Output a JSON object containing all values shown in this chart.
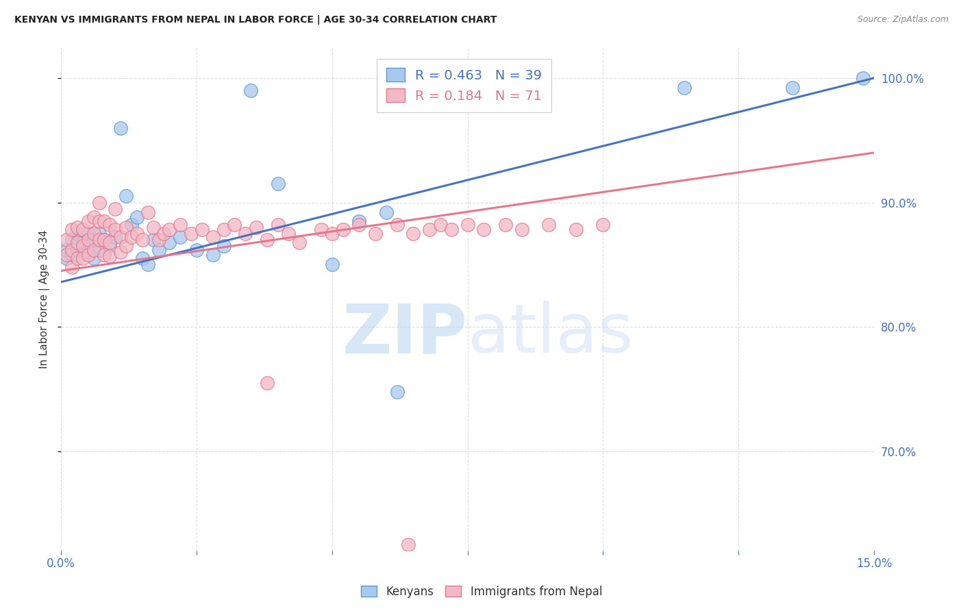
{
  "title": "KENYAN VS IMMIGRANTS FROM NEPAL IN LABOR FORCE | AGE 30-34 CORRELATION CHART",
  "source": "Source: ZipAtlas.com",
  "ylabel": "In Labor Force | Age 30-34",
  "xlim": [
    0.0,
    0.15
  ],
  "ylim": [
    0.62,
    1.025
  ],
  "xtick_positions": [
    0.0,
    0.025,
    0.05,
    0.075,
    0.1,
    0.125,
    0.15
  ],
  "xtick_labels": [
    "0.0%",
    "",
    "",
    "",
    "",
    "",
    "15.0%"
  ],
  "ytick_positions": [
    0.7,
    0.8,
    0.9,
    1.0
  ],
  "ytick_labels": [
    "70.0%",
    "80.0%",
    "90.0%",
    "100.0%"
  ],
  "blue_R": 0.463,
  "blue_N": 39,
  "pink_R": 0.184,
  "pink_N": 71,
  "blue_fill": "#A8C8ED",
  "pink_fill": "#F2B8C6",
  "blue_edge": "#5B9BD5",
  "pink_edge": "#E8768A",
  "blue_line": "#4472C4",
  "pink_line": "#E8768A",
  "legend_blue": "Kenyans",
  "legend_pink": "Immigrants from Nepal",
  "watermark_zip": "ZIP",
  "watermark_atlas": "atlas",
  "background": "#FFFFFF",
  "grid_color": "#DDDDDD",
  "blue_x": [
    0.001,
    0.001,
    0.002,
    0.002,
    0.003,
    0.003,
    0.004,
    0.004,
    0.005,
    0.005,
    0.006,
    0.006,
    0.007,
    0.007,
    0.008,
    0.009,
    0.01,
    0.011,
    0.012,
    0.013,
    0.014,
    0.015,
    0.016,
    0.017,
    0.018,
    0.02,
    0.022,
    0.025,
    0.028,
    0.03,
    0.035,
    0.04,
    0.05,
    0.055,
    0.06,
    0.062,
    0.115,
    0.135,
    0.148
  ],
  "blue_y": [
    0.855,
    0.862,
    0.87,
    0.858,
    0.875,
    0.862,
    0.86,
    0.868,
    0.875,
    0.86,
    0.87,
    0.855,
    0.875,
    0.862,
    0.87,
    0.865,
    0.872,
    0.96,
    0.905,
    0.882,
    0.888,
    0.855,
    0.85,
    0.87,
    0.862,
    0.868,
    0.872,
    0.862,
    0.858,
    0.865,
    0.99,
    0.915,
    0.85,
    0.885,
    0.892,
    0.748,
    0.992,
    0.992,
    1.0
  ],
  "pink_x": [
    0.001,
    0.001,
    0.002,
    0.002,
    0.002,
    0.003,
    0.003,
    0.003,
    0.004,
    0.004,
    0.004,
    0.005,
    0.005,
    0.005,
    0.006,
    0.006,
    0.006,
    0.007,
    0.007,
    0.007,
    0.008,
    0.008,
    0.008,
    0.009,
    0.009,
    0.009,
    0.01,
    0.01,
    0.011,
    0.011,
    0.012,
    0.012,
    0.013,
    0.014,
    0.015,
    0.016,
    0.017,
    0.018,
    0.019,
    0.02,
    0.022,
    0.024,
    0.026,
    0.028,
    0.03,
    0.032,
    0.034,
    0.036,
    0.038,
    0.04,
    0.042,
    0.044,
    0.048,
    0.05,
    0.052,
    0.055,
    0.058,
    0.062,
    0.065,
    0.068,
    0.07,
    0.072,
    0.075,
    0.078,
    0.082,
    0.085,
    0.09,
    0.095,
    0.1,
    0.038,
    0.064
  ],
  "pink_y": [
    0.87,
    0.858,
    0.878,
    0.862,
    0.848,
    0.88,
    0.868,
    0.855,
    0.878,
    0.865,
    0.855,
    0.885,
    0.87,
    0.858,
    0.888,
    0.875,
    0.862,
    0.9,
    0.885,
    0.87,
    0.885,
    0.87,
    0.858,
    0.882,
    0.868,
    0.857,
    0.895,
    0.878,
    0.872,
    0.86,
    0.88,
    0.865,
    0.872,
    0.875,
    0.87,
    0.892,
    0.88,
    0.87,
    0.875,
    0.878,
    0.882,
    0.875,
    0.878,
    0.872,
    0.878,
    0.882,
    0.875,
    0.88,
    0.87,
    0.882,
    0.875,
    0.868,
    0.878,
    0.875,
    0.878,
    0.882,
    0.875,
    0.882,
    0.875,
    0.878,
    0.882,
    0.878,
    0.882,
    0.878,
    0.882,
    0.878,
    0.882,
    0.878,
    0.882,
    0.755,
    0.625
  ],
  "blue_trendline_x": [
    0.0,
    0.15
  ],
  "blue_trendline_y": [
    0.836,
    1.0
  ],
  "pink_trendline_x": [
    0.0,
    0.15
  ],
  "pink_trendline_y": [
    0.845,
    0.94
  ]
}
